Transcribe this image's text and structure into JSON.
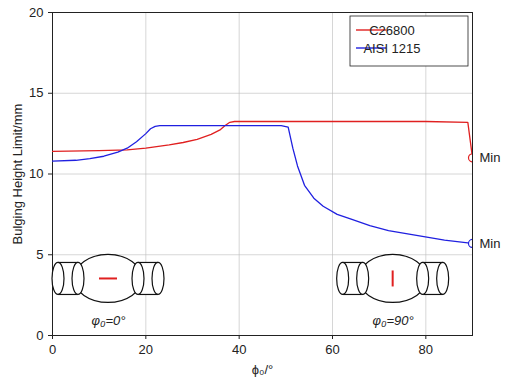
{
  "chart_data": {
    "type": "line",
    "xlabel": "ϕ₀/°",
    "ylabel": "Bulging Height Limit/mm",
    "xlim": [
      0,
      90
    ],
    "ylim": [
      0,
      20
    ],
    "xticks": [
      0,
      20,
      40,
      60,
      80
    ],
    "yticks": [
      0,
      5,
      10,
      15,
      20
    ],
    "grid": true,
    "legend": "upper right",
    "series": [
      {
        "name": "C26800",
        "color": "#e02020",
        "x": [
          0,
          10,
          16,
          20,
          25,
          28,
          31,
          34,
          36,
          37,
          38,
          39,
          50,
          60,
          70,
          80,
          89,
          90
        ],
        "values": [
          11.4,
          11.45,
          11.5,
          11.6,
          11.8,
          11.95,
          12.15,
          12.45,
          12.75,
          13.0,
          13.2,
          13.25,
          13.25,
          13.25,
          13.25,
          13.25,
          13.2,
          11.0
        ]
      },
      {
        "name": "AISI 1215",
        "color": "#2020e0",
        "x": [
          0,
          5,
          8,
          11,
          14,
          16,
          18,
          20,
          21,
          22,
          23,
          30,
          40,
          49,
          50.5,
          51.5,
          52.5,
          54,
          56,
          58,
          61,
          64,
          68,
          72,
          78,
          84,
          90
        ],
        "values": [
          10.8,
          10.85,
          10.95,
          11.1,
          11.35,
          11.6,
          12.0,
          12.5,
          12.8,
          12.95,
          13.0,
          13.0,
          13.0,
          13.0,
          12.9,
          11.6,
          10.5,
          9.3,
          8.5,
          8.0,
          7.5,
          7.2,
          6.8,
          6.5,
          6.2,
          5.9,
          5.7
        ]
      }
    ],
    "annotations": [
      {
        "text": "Min",
        "x": 90,
        "y": 11.0,
        "series": "C26800",
        "marker": "circle"
      },
      {
        "text": "Min",
        "x": 90,
        "y": 5.7,
        "series": "AISI 1215",
        "marker": "circle"
      },
      {
        "text": "φ₀=0°",
        "x": 12,
        "y": 0.9
      },
      {
        "text": "φ₀=90°",
        "x": 73,
        "y": 0.9
      }
    ]
  }
}
